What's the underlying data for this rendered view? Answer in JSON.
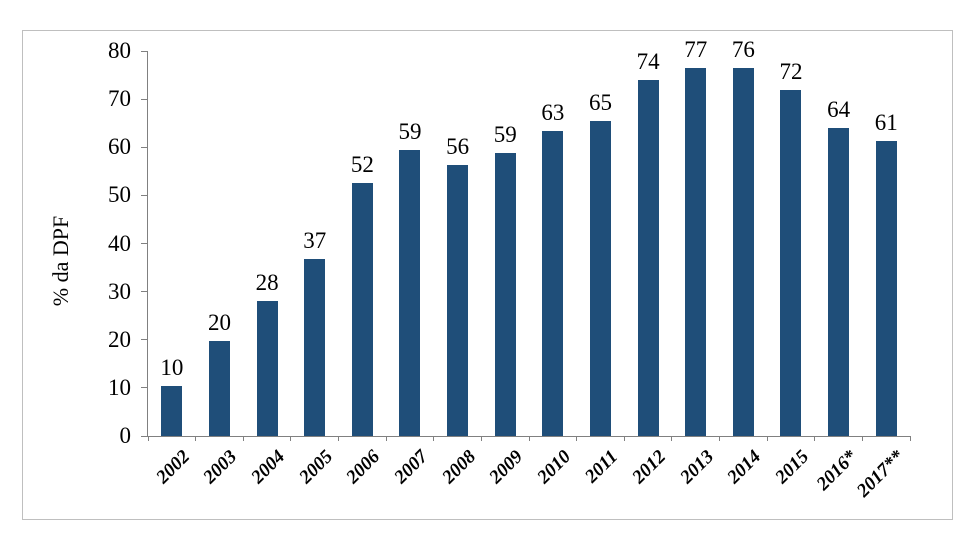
{
  "figure": {
    "background": "#FFFFFF",
    "frame_border_color": "#BFBFBF"
  },
  "chart_data": {
    "type": "bar",
    "title": "",
    "xlabel": "",
    "ylabel": "% da DPF",
    "ylim": [
      0,
      80
    ],
    "yticks": [
      0,
      10,
      20,
      30,
      40,
      50,
      60,
      70,
      80
    ],
    "grid": false,
    "legend_position": "none",
    "categories": [
      "2002",
      "2003",
      "2004",
      "2005",
      "2006",
      "2007",
      "2008",
      "2009",
      "2010",
      "2011",
      "2012",
      "2013",
      "2014",
      "2015",
      "2016*",
      "2017**"
    ],
    "values": [
      10,
      20,
      28,
      37,
      52,
      59,
      56,
      59,
      63,
      65,
      74,
      77,
      76,
      72,
      64,
      61
    ],
    "data_labels": [
      "10",
      "20",
      "28",
      "37",
      "52",
      "59",
      "56",
      "59",
      "63",
      "65",
      "74",
      "77",
      "76",
      "72",
      "64",
      "61"
    ],
    "bar_heights_precise": [
      10.3,
      19.7,
      28.0,
      36.8,
      52.5,
      59.4,
      56.4,
      58.9,
      63.3,
      65.5,
      73.9,
      76.5,
      76.5,
      71.9,
      64.1,
      61.4
    ],
    "bar_color": "#1F4E79",
    "axis_color": "#808080",
    "label_color": "#000000"
  }
}
